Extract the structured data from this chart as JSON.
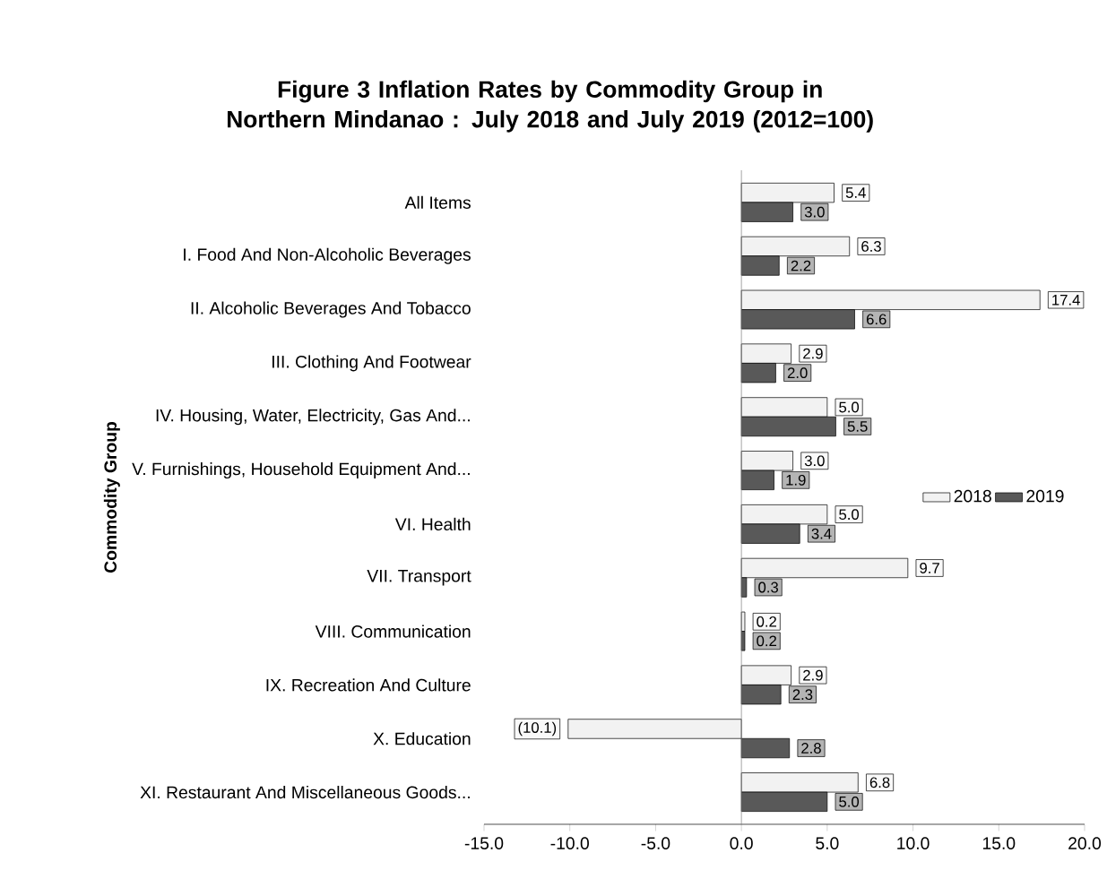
{
  "chart_data": {
    "type": "bar",
    "orientation": "horizontal",
    "title": "Figure 3 Inflation Rates by Commodity Group in Northern Mindanao : July 2018 and July 2019 (2012=100)",
    "ylabel": "Commodity Group",
    "categories": [
      "All Items",
      "I. Food And Non-Alcoholic Beverages",
      "II. Alcoholic Beverages And Tobacco",
      "III. Clothing And Footwear",
      "IV. Housing, Water, Electricity, Gas And...",
      "V. Furnishings, Household Equipment And...",
      "VI. Health",
      "VII. Transport",
      "VIII. Communication",
      "IX. Recreation And Culture",
      "X. Education",
      "XI. Restaurant And Miscellaneous Goods..."
    ],
    "series": [
      {
        "name": "2018",
        "color": "#f2f2f2",
        "values": [
          5.4,
          6.3,
          17.4,
          2.9,
          5.0,
          3.0,
          5.0,
          9.7,
          0.2,
          2.9,
          -10.1,
          6.8
        ],
        "value_labels": [
          "5.4",
          "6.3",
          "17.4",
          "2.9",
          "5.0",
          "3.0",
          "5.0",
          "9.7",
          "0.2",
          "2.9",
          "(10.1)",
          "6.8"
        ]
      },
      {
        "name": "2019",
        "color": "#595959",
        "values": [
          3.0,
          2.2,
          6.6,
          2.0,
          5.5,
          1.9,
          3.4,
          0.3,
          0.2,
          2.3,
          2.8,
          5.0
        ],
        "value_labels": [
          "3.0",
          "2.2",
          "6.6",
          "2.0",
          "5.5",
          "1.9",
          "3.4",
          "0.3",
          "0.2",
          "2.3",
          "2.8",
          "5.0"
        ]
      }
    ],
    "xlim": [
      -15,
      20
    ],
    "xticks": [
      {
        "value": -15,
        "label": "-15.0"
      },
      {
        "value": -10,
        "label": "-10.0"
      },
      {
        "value": -5,
        "label": "-5.0"
      },
      {
        "value": 0,
        "label": "0.0"
      },
      {
        "value": 5,
        "label": "5.0"
      },
      {
        "value": 10,
        "label": "10.0"
      },
      {
        "value": 15,
        "label": "15.0"
      },
      {
        "value": 20,
        "label": "20.0"
      }
    ],
    "legend": "right"
  }
}
